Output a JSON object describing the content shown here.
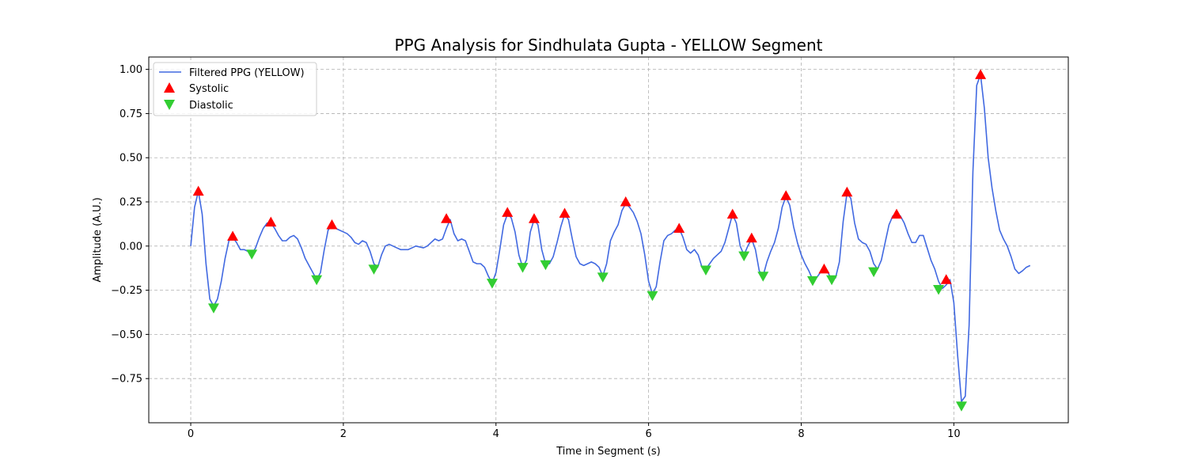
{
  "chart_data": {
    "type": "line",
    "title": "PPG Analysis for Sindhulata Gupta - YELLOW Segment",
    "xlabel": "Time in Segment (s)",
    "ylabel": "Amplitude (A.U.)",
    "xlim": [
      -0.55,
      11.5
    ],
    "ylim": [
      -1.0,
      1.07
    ],
    "x_ticks": [
      0,
      2,
      4,
      6,
      8,
      10
    ],
    "y_ticks": [
      -0.75,
      -0.5,
      -0.25,
      0.0,
      0.25,
      0.5,
      0.75,
      1.0
    ],
    "x_tick_labels": [
      "0",
      "2",
      "4",
      "6",
      "8",
      "10"
    ],
    "y_tick_labels": [
      "−0.75",
      "−0.50",
      "−0.25",
      "0.00",
      "0.25",
      "0.50",
      "0.75",
      "1.00"
    ],
    "grid": true,
    "legend_position": "top-left",
    "series": [
      {
        "name": "Filtered PPG (YELLOW)",
        "kind": "line",
        "color": "#4169e1",
        "points": [
          [
            0.0,
            0.0
          ],
          [
            0.05,
            0.22
          ],
          [
            0.1,
            0.31
          ],
          [
            0.15,
            0.18
          ],
          [
            0.2,
            -0.1
          ],
          [
            0.25,
            -0.3
          ],
          [
            0.3,
            -0.34
          ],
          [
            0.35,
            -0.3
          ],
          [
            0.4,
            -0.2
          ],
          [
            0.45,
            -0.07
          ],
          [
            0.5,
            0.03
          ],
          [
            0.55,
            0.05
          ],
          [
            0.6,
            0.02
          ],
          [
            0.65,
            -0.02
          ],
          [
            0.7,
            -0.02
          ],
          [
            0.75,
            -0.03
          ],
          [
            0.8,
            -0.045
          ],
          [
            0.85,
            -0.01
          ],
          [
            0.9,
            0.05
          ],
          [
            0.95,
            0.1
          ],
          [
            1.0,
            0.13
          ],
          [
            1.05,
            0.13
          ],
          [
            1.1,
            0.1
          ],
          [
            1.15,
            0.06
          ],
          [
            1.2,
            0.03
          ],
          [
            1.25,
            0.03
          ],
          [
            1.3,
            0.05
          ],
          [
            1.35,
            0.06
          ],
          [
            1.4,
            0.04
          ],
          [
            1.45,
            -0.01
          ],
          [
            1.5,
            -0.07
          ],
          [
            1.55,
            -0.11
          ],
          [
            1.6,
            -0.15
          ],
          [
            1.65,
            -0.19
          ],
          [
            1.7,
            -0.15
          ],
          [
            1.75,
            -0.02
          ],
          [
            1.8,
            0.09
          ],
          [
            1.85,
            0.12
          ],
          [
            1.9,
            0.1
          ],
          [
            1.95,
            0.09
          ],
          [
            2.0,
            0.08
          ],
          [
            2.05,
            0.07
          ],
          [
            2.1,
            0.05
          ],
          [
            2.15,
            0.02
          ],
          [
            2.2,
            0.01
          ],
          [
            2.25,
            0.03
          ],
          [
            2.3,
            0.02
          ],
          [
            2.35,
            -0.03
          ],
          [
            2.4,
            -0.1
          ],
          [
            2.45,
            -0.12
          ],
          [
            2.5,
            -0.05
          ],
          [
            2.55,
            0.0
          ],
          [
            2.6,
            0.01
          ],
          [
            2.65,
            0.0
          ],
          [
            2.7,
            -0.01
          ],
          [
            2.75,
            -0.02
          ],
          [
            2.8,
            -0.02
          ],
          [
            2.85,
            -0.02
          ],
          [
            2.9,
            -0.01
          ],
          [
            2.95,
            0.0
          ],
          [
            3.0,
            -0.005
          ],
          [
            3.05,
            -0.01
          ],
          [
            3.1,
            0.0
          ],
          [
            3.15,
            0.02
          ],
          [
            3.2,
            0.04
          ],
          [
            3.25,
            0.03
          ],
          [
            3.3,
            0.04
          ],
          [
            3.35,
            0.1
          ],
          [
            3.4,
            0.15
          ],
          [
            3.45,
            0.07
          ],
          [
            3.5,
            0.03
          ],
          [
            3.55,
            0.04
          ],
          [
            3.6,
            0.03
          ],
          [
            3.65,
            -0.03
          ],
          [
            3.7,
            -0.09
          ],
          [
            3.75,
            -0.1
          ],
          [
            3.8,
            -0.1
          ],
          [
            3.85,
            -0.12
          ],
          [
            3.9,
            -0.17
          ],
          [
            3.95,
            -0.21
          ],
          [
            4.0,
            -0.15
          ],
          [
            4.05,
            -0.02
          ],
          [
            4.1,
            0.12
          ],
          [
            4.15,
            0.18
          ],
          [
            4.2,
            0.16
          ],
          [
            4.25,
            0.08
          ],
          [
            4.3,
            -0.05
          ],
          [
            4.35,
            -0.12
          ],
          [
            4.4,
            -0.08
          ],
          [
            4.45,
            0.08
          ],
          [
            4.5,
            0.15
          ],
          [
            4.55,
            0.12
          ],
          [
            4.6,
            -0.02
          ],
          [
            4.65,
            -0.1
          ],
          [
            4.7,
            -0.1
          ],
          [
            4.75,
            -0.06
          ],
          [
            4.8,
            0.02
          ],
          [
            4.85,
            0.11
          ],
          [
            4.9,
            0.18
          ],
          [
            4.95,
            0.15
          ],
          [
            5.0,
            0.04
          ],
          [
            5.05,
            -0.06
          ],
          [
            5.1,
            -0.1
          ],
          [
            5.15,
            -0.11
          ],
          [
            5.2,
            -0.1
          ],
          [
            5.25,
            -0.09
          ],
          [
            5.3,
            -0.1
          ],
          [
            5.35,
            -0.12
          ],
          [
            5.4,
            -0.17
          ],
          [
            5.45,
            -0.1
          ],
          [
            5.5,
            0.03
          ],
          [
            5.55,
            0.08
          ],
          [
            5.6,
            0.12
          ],
          [
            5.65,
            0.2
          ],
          [
            5.7,
            0.24
          ],
          [
            5.75,
            0.22
          ],
          [
            5.8,
            0.19
          ],
          [
            5.85,
            0.14
          ],
          [
            5.9,
            0.07
          ],
          [
            5.95,
            -0.05
          ],
          [
            6.0,
            -0.2
          ],
          [
            6.05,
            -0.27
          ],
          [
            6.1,
            -0.23
          ],
          [
            6.15,
            -0.09
          ],
          [
            6.2,
            0.03
          ],
          [
            6.25,
            0.06
          ],
          [
            6.3,
            0.07
          ],
          [
            6.35,
            0.09
          ],
          [
            6.4,
            0.1
          ],
          [
            6.45,
            0.05
          ],
          [
            6.5,
            -0.02
          ],
          [
            6.55,
            -0.04
          ],
          [
            6.6,
            -0.02
          ],
          [
            6.65,
            -0.05
          ],
          [
            6.7,
            -0.12
          ],
          [
            6.75,
            -0.13
          ],
          [
            6.8,
            -0.1
          ],
          [
            6.85,
            -0.07
          ],
          [
            6.9,
            -0.05
          ],
          [
            6.95,
            -0.03
          ],
          [
            7.0,
            0.02
          ],
          [
            7.05,
            0.1
          ],
          [
            7.1,
            0.18
          ],
          [
            7.15,
            0.13
          ],
          [
            7.2,
            0.0
          ],
          [
            7.25,
            -0.05
          ],
          [
            7.3,
            0.0
          ],
          [
            7.35,
            0.04
          ],
          [
            7.4,
            -0.02
          ],
          [
            7.45,
            -0.14
          ],
          [
            7.5,
            -0.17
          ],
          [
            7.55,
            -0.09
          ],
          [
            7.6,
            -0.03
          ],
          [
            7.65,
            0.02
          ],
          [
            7.7,
            0.1
          ],
          [
            7.75,
            0.22
          ],
          [
            7.8,
            0.28
          ],
          [
            7.85,
            0.23
          ],
          [
            7.9,
            0.11
          ],
          [
            7.95,
            0.02
          ],
          [
            8.0,
            -0.05
          ],
          [
            8.05,
            -0.1
          ],
          [
            8.1,
            -0.14
          ],
          [
            8.15,
            -0.19
          ],
          [
            8.2,
            -0.18
          ],
          [
            8.25,
            -0.15
          ],
          [
            8.3,
            -0.13
          ],
          [
            8.35,
            -0.15
          ],
          [
            8.4,
            -0.19
          ],
          [
            8.45,
            -0.18
          ],
          [
            8.5,
            -0.09
          ],
          [
            8.55,
            0.14
          ],
          [
            8.6,
            0.3
          ],
          [
            8.65,
            0.27
          ],
          [
            8.7,
            0.13
          ],
          [
            8.75,
            0.04
          ],
          [
            8.8,
            0.02
          ],
          [
            8.85,
            0.01
          ],
          [
            8.9,
            -0.03
          ],
          [
            8.95,
            -0.1
          ],
          [
            9.0,
            -0.13
          ],
          [
            9.05,
            -0.08
          ],
          [
            9.1,
            0.02
          ],
          [
            9.15,
            0.12
          ],
          [
            9.2,
            0.17
          ],
          [
            9.25,
            0.18
          ],
          [
            9.3,
            0.17
          ],
          [
            9.35,
            0.13
          ],
          [
            9.4,
            0.07
          ],
          [
            9.45,
            0.02
          ],
          [
            9.5,
            0.02
          ],
          [
            9.55,
            0.06
          ],
          [
            9.6,
            0.06
          ],
          [
            9.65,
            -0.01
          ],
          [
            9.7,
            -0.08
          ],
          [
            9.75,
            -0.13
          ],
          [
            9.8,
            -0.2
          ],
          [
            9.85,
            -0.24
          ],
          [
            9.9,
            -0.22
          ],
          [
            9.95,
            -0.19
          ],
          [
            10.0,
            -0.32
          ],
          [
            10.05,
            -0.62
          ],
          [
            10.1,
            -0.88
          ],
          [
            10.15,
            -0.85
          ],
          [
            10.2,
            -0.45
          ],
          [
            10.25,
            0.42
          ],
          [
            10.3,
            0.91
          ],
          [
            10.35,
            0.97
          ],
          [
            10.4,
            0.78
          ],
          [
            10.45,
            0.5
          ],
          [
            10.5,
            0.33
          ],
          [
            10.55,
            0.2
          ],
          [
            10.6,
            0.09
          ],
          [
            10.65,
            0.04
          ],
          [
            10.7,
            0.0
          ],
          [
            10.75,
            -0.06
          ],
          [
            10.8,
            -0.13
          ],
          [
            10.85,
            -0.155
          ],
          [
            10.9,
            -0.14
          ],
          [
            10.95,
            -0.12
          ],
          [
            11.0,
            -0.11
          ]
        ]
      },
      {
        "name": "Systolic",
        "kind": "markers",
        "marker": "triangle-up",
        "color": "#ff0000",
        "points": [
          [
            0.1,
            0.31
          ],
          [
            0.55,
            0.055
          ],
          [
            1.05,
            0.135
          ],
          [
            1.85,
            0.12
          ],
          [
            3.35,
            0.155
          ],
          [
            4.15,
            0.19
          ],
          [
            4.5,
            0.155
          ],
          [
            4.9,
            0.185
          ],
          [
            5.7,
            0.25
          ],
          [
            6.4,
            0.1
          ],
          [
            7.1,
            0.18
          ],
          [
            7.35,
            0.045
          ],
          [
            7.8,
            0.285
          ],
          [
            8.3,
            -0.13
          ],
          [
            8.6,
            0.305
          ],
          [
            9.25,
            0.18
          ],
          [
            9.9,
            -0.19
          ],
          [
            10.35,
            0.97
          ]
        ]
      },
      {
        "name": "Diastolic",
        "kind": "markers",
        "marker": "triangle-down",
        "color": "#32cd32",
        "points": [
          [
            0.3,
            -0.35
          ],
          [
            0.8,
            -0.045
          ],
          [
            1.65,
            -0.19
          ],
          [
            2.4,
            -0.13
          ],
          [
            3.95,
            -0.21
          ],
          [
            4.35,
            -0.12
          ],
          [
            4.65,
            -0.105
          ],
          [
            5.4,
            -0.175
          ],
          [
            6.05,
            -0.28
          ],
          [
            6.75,
            -0.135
          ],
          [
            7.25,
            -0.055
          ],
          [
            7.5,
            -0.17
          ],
          [
            8.15,
            -0.195
          ],
          [
            8.4,
            -0.19
          ],
          [
            8.95,
            -0.145
          ],
          [
            9.8,
            -0.245
          ],
          [
            10.1,
            -0.905
          ]
        ]
      }
    ]
  }
}
